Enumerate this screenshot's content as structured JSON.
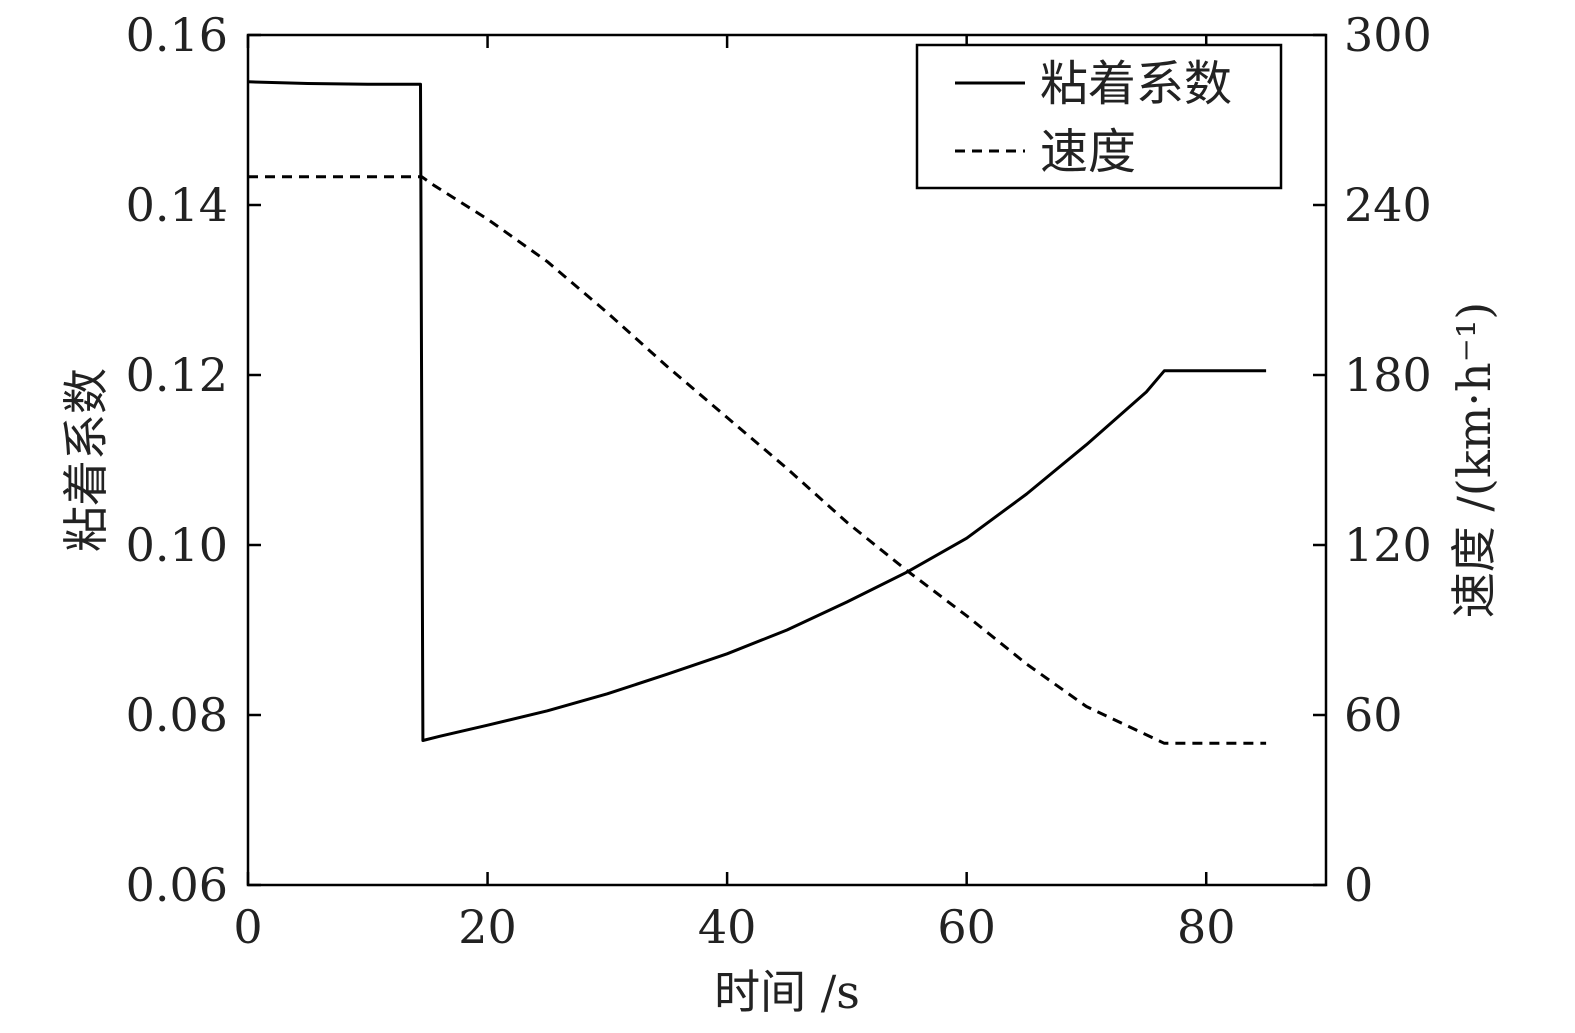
{
  "chart_data": {
    "type": "line",
    "xlabel": "时间 /s",
    "ylabel_left": "粘着系数",
    "ylabel_right": "速度 /(km·h⁻¹)",
    "x_range": [
      0,
      90
    ],
    "x_ticks": [
      0,
      20,
      40,
      60,
      80
    ],
    "y_left_range": [
      0.06,
      0.16
    ],
    "y_left_ticks": [
      "0.06",
      "0.08",
      "0.10",
      "0.12",
      "0.14",
      "0.16"
    ],
    "y_right_range": [
      0,
      300
    ],
    "y_right_ticks": [
      0,
      60,
      120,
      180,
      240,
      300
    ],
    "grid": false,
    "legend_position": "top-right",
    "series": [
      {
        "name": "粘着系数",
        "axis": "left",
        "style": "solid",
        "color": "#000000",
        "x": [
          0,
          5,
          10,
          14.4,
          14.6,
          16,
          20,
          25,
          30,
          35,
          40,
          45,
          50,
          55,
          60,
          65,
          70,
          75,
          76.5,
          85
        ],
        "y": [
          0.1545,
          0.1543,
          0.1542,
          0.1542,
          0.077,
          0.0775,
          0.0788,
          0.0805,
          0.0825,
          0.0848,
          0.0872,
          0.09,
          0.0933,
          0.0968,
          0.1008,
          0.106,
          0.1118,
          0.118,
          0.1205,
          0.1205
        ]
      },
      {
        "name": "速度",
        "axis": "right",
        "style": "dashed",
        "color": "#000000",
        "x": [
          0,
          5,
          10,
          14.5,
          15.5,
          20,
          25,
          30,
          35,
          40,
          45,
          50,
          55,
          60,
          65,
          70,
          76.5,
          80,
          85
        ],
        "y": [
          250,
          250,
          250,
          250,
          247,
          235,
          220,
          202,
          183,
          165,
          147,
          128,
          111,
          95,
          78,
          63,
          50,
          50,
          50
        ]
      }
    ]
  }
}
